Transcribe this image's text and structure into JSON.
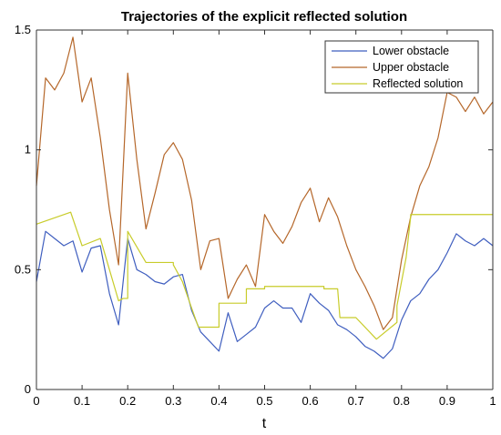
{
  "chart_data": {
    "type": "line",
    "title": "Trajectories of the explicit reflected solution",
    "xlabel": "t",
    "ylabel": "",
    "xlim": [
      0,
      1
    ],
    "ylim": [
      0,
      1.5
    ],
    "x_ticks": [
      "0",
      "0.1",
      "0.2",
      "0.3",
      "0.4",
      "0.5",
      "0.6",
      "0.7",
      "0.8",
      "0.9",
      "1"
    ],
    "y_ticks": [
      "0",
      "0.5",
      "1",
      "1.5"
    ],
    "grid": false,
    "legend_position": "top-right",
    "colors": {
      "lower": "#3f5ebf",
      "upper": "#b5672a",
      "reflected": "#c8cc2a",
      "axis": "#333333"
    },
    "series": [
      {
        "name": "Lower obstacle",
        "x": [
          0,
          0.02,
          0.04,
          0.06,
          0.08,
          0.1,
          0.12,
          0.14,
          0.16,
          0.18,
          0.2,
          0.22,
          0.24,
          0.26,
          0.28,
          0.3,
          0.32,
          0.34,
          0.36,
          0.38,
          0.4,
          0.42,
          0.44,
          0.46,
          0.48,
          0.5,
          0.52,
          0.54,
          0.56,
          0.58,
          0.6,
          0.62,
          0.64,
          0.66,
          0.68,
          0.7,
          0.72,
          0.74,
          0.76,
          0.78,
          0.8,
          0.82,
          0.84,
          0.86,
          0.88,
          0.9,
          0.92,
          0.94,
          0.96,
          0.98,
          1.0
        ],
        "values": [
          0.45,
          0.66,
          0.63,
          0.6,
          0.62,
          0.49,
          0.59,
          0.6,
          0.4,
          0.27,
          0.63,
          0.5,
          0.48,
          0.45,
          0.44,
          0.47,
          0.48,
          0.33,
          0.24,
          0.2,
          0.16,
          0.32,
          0.2,
          0.23,
          0.26,
          0.34,
          0.37,
          0.34,
          0.34,
          0.28,
          0.4,
          0.36,
          0.33,
          0.27,
          0.25,
          0.22,
          0.18,
          0.16,
          0.13,
          0.17,
          0.29,
          0.37,
          0.4,
          0.46,
          0.5,
          0.57,
          0.65,
          0.62,
          0.6,
          0.63,
          0.6
        ]
      },
      {
        "name": "Upper obstacle",
        "x": [
          0,
          0.02,
          0.04,
          0.06,
          0.08,
          0.1,
          0.12,
          0.14,
          0.16,
          0.18,
          0.2,
          0.22,
          0.24,
          0.26,
          0.28,
          0.3,
          0.32,
          0.34,
          0.36,
          0.38,
          0.4,
          0.42,
          0.44,
          0.46,
          0.48,
          0.5,
          0.52,
          0.54,
          0.56,
          0.58,
          0.6,
          0.62,
          0.64,
          0.66,
          0.68,
          0.7,
          0.72,
          0.74,
          0.76,
          0.78,
          0.8,
          0.82,
          0.84,
          0.86,
          0.88,
          0.9,
          0.92,
          0.94,
          0.96,
          0.98,
          1.0
        ],
        "values": [
          0.85,
          1.3,
          1.25,
          1.32,
          1.47,
          1.2,
          1.3,
          1.05,
          0.75,
          0.52,
          1.32,
          0.96,
          0.67,
          0.82,
          0.98,
          1.03,
          0.96,
          0.79,
          0.5,
          0.62,
          0.63,
          0.38,
          0.46,
          0.52,
          0.43,
          0.73,
          0.66,
          0.61,
          0.68,
          0.78,
          0.84,
          0.7,
          0.8,
          0.72,
          0.6,
          0.5,
          0.43,
          0.35,
          0.25,
          0.3,
          0.54,
          0.72,
          0.85,
          0.93,
          1.05,
          1.24,
          1.22,
          1.16,
          1.22,
          1.15,
          1.2
        ]
      },
      {
        "name": "Reflected solution",
        "x": [
          0,
          0.075,
          0.075,
          0.1,
          0.14,
          0.14,
          0.16,
          0.18,
          0.19,
          0.2,
          0.2,
          0.24,
          0.3,
          0.3,
          0.32,
          0.34,
          0.355,
          0.4,
          0.4,
          0.46,
          0.46,
          0.5,
          0.5,
          0.63,
          0.63,
          0.66,
          0.665,
          0.7,
          0.745,
          0.745,
          0.79,
          0.79,
          0.81,
          0.82,
          0.82,
          1.0
        ],
        "values": [
          0.69,
          0.74,
          0.74,
          0.6,
          0.63,
          0.63,
          0.5,
          0.37,
          0.38,
          0.38,
          0.66,
          0.53,
          0.53,
          0.52,
          0.45,
          0.34,
          0.26,
          0.26,
          0.36,
          0.36,
          0.42,
          0.42,
          0.43,
          0.43,
          0.42,
          0.42,
          0.3,
          0.3,
          0.21,
          0.21,
          0.28,
          0.35,
          0.55,
          0.72,
          0.73,
          0.73
        ]
      }
    ]
  }
}
